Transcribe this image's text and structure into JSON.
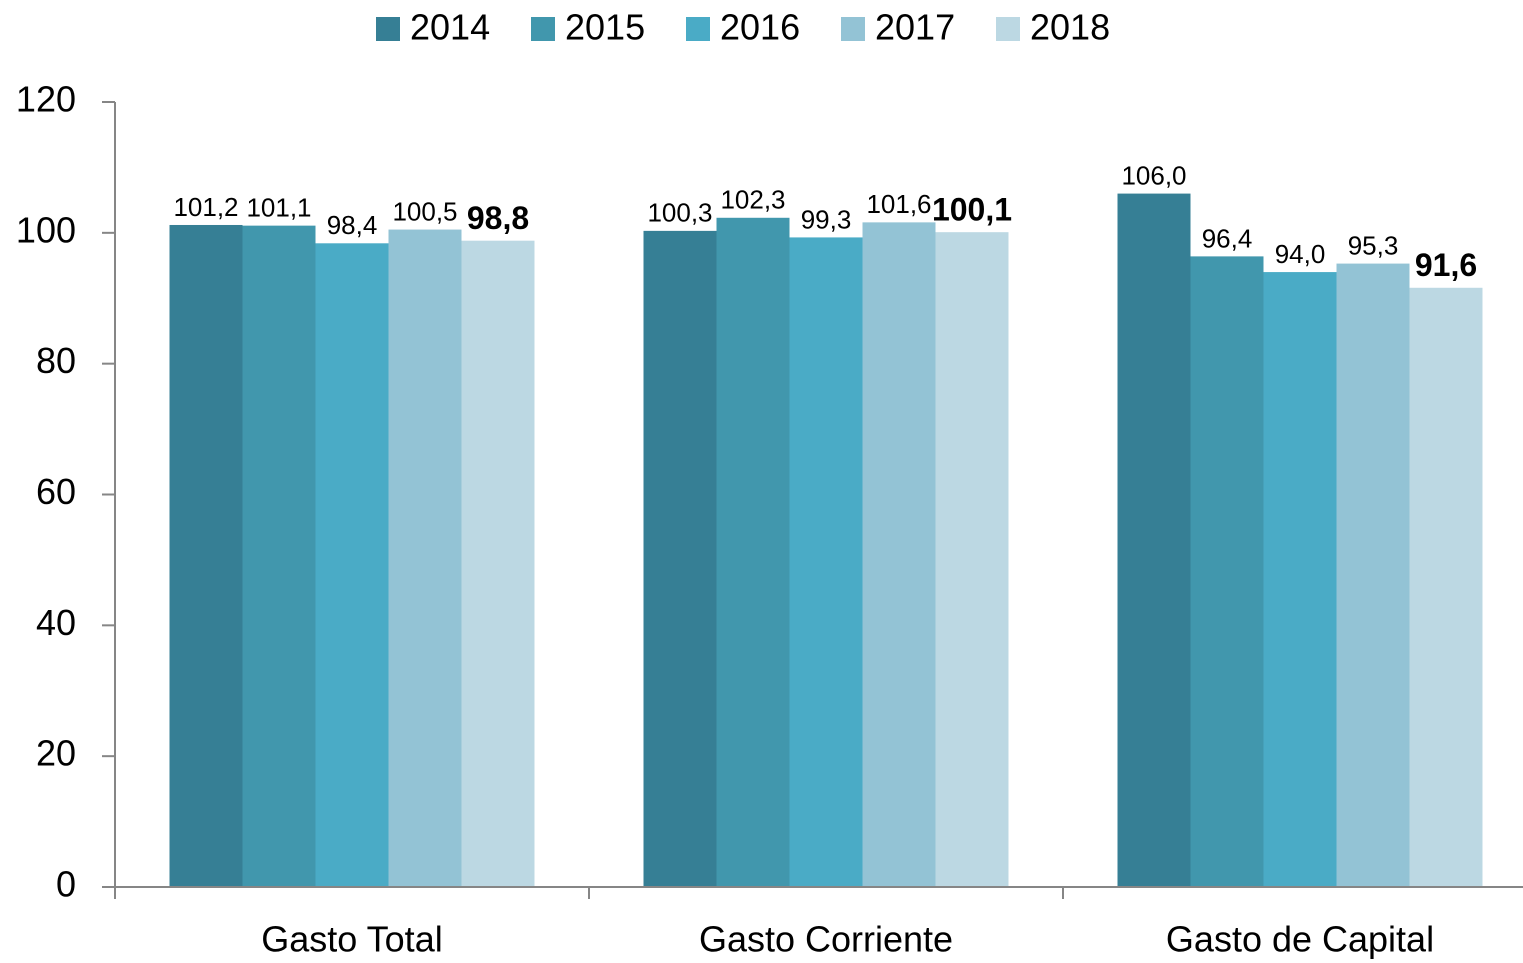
{
  "chart_data": {
    "type": "bar",
    "categories": [
      "Gasto Total",
      "Gasto Corriente",
      "Gasto de Capital"
    ],
    "series": [
      {
        "name": "2014",
        "color": "#367f95",
        "values": [
          101.2,
          100.3,
          106.0
        ],
        "value_labels": [
          "101,2",
          "100,3",
          "106,0"
        ]
      },
      {
        "name": "2015",
        "color": "#4197ad",
        "values": [
          101.1,
          102.3,
          96.4
        ],
        "value_labels": [
          "101,1",
          "102,3",
          "96,4"
        ]
      },
      {
        "name": "2016",
        "color": "#4aabc6",
        "values": [
          98.4,
          99.3,
          94.0
        ],
        "value_labels": [
          "98,4",
          "99,3",
          "94,0"
        ]
      },
      {
        "name": "2017",
        "color": "#93c3d5",
        "values": [
          100.5,
          101.6,
          95.3
        ],
        "value_labels": [
          "100,5",
          "101,6",
          "95,3"
        ]
      },
      {
        "name": "2018",
        "color": "#bcd8e3",
        "values": [
          98.8,
          100.1,
          91.6
        ],
        "value_labels": [
          "98,8",
          "100,1",
          "91,6"
        ],
        "label_weight": "bold"
      }
    ],
    "ylim": [
      0,
      120
    ],
    "yticks": [
      0,
      20,
      40,
      60,
      80,
      100,
      120
    ],
    "grid": false,
    "legend": "top"
  }
}
